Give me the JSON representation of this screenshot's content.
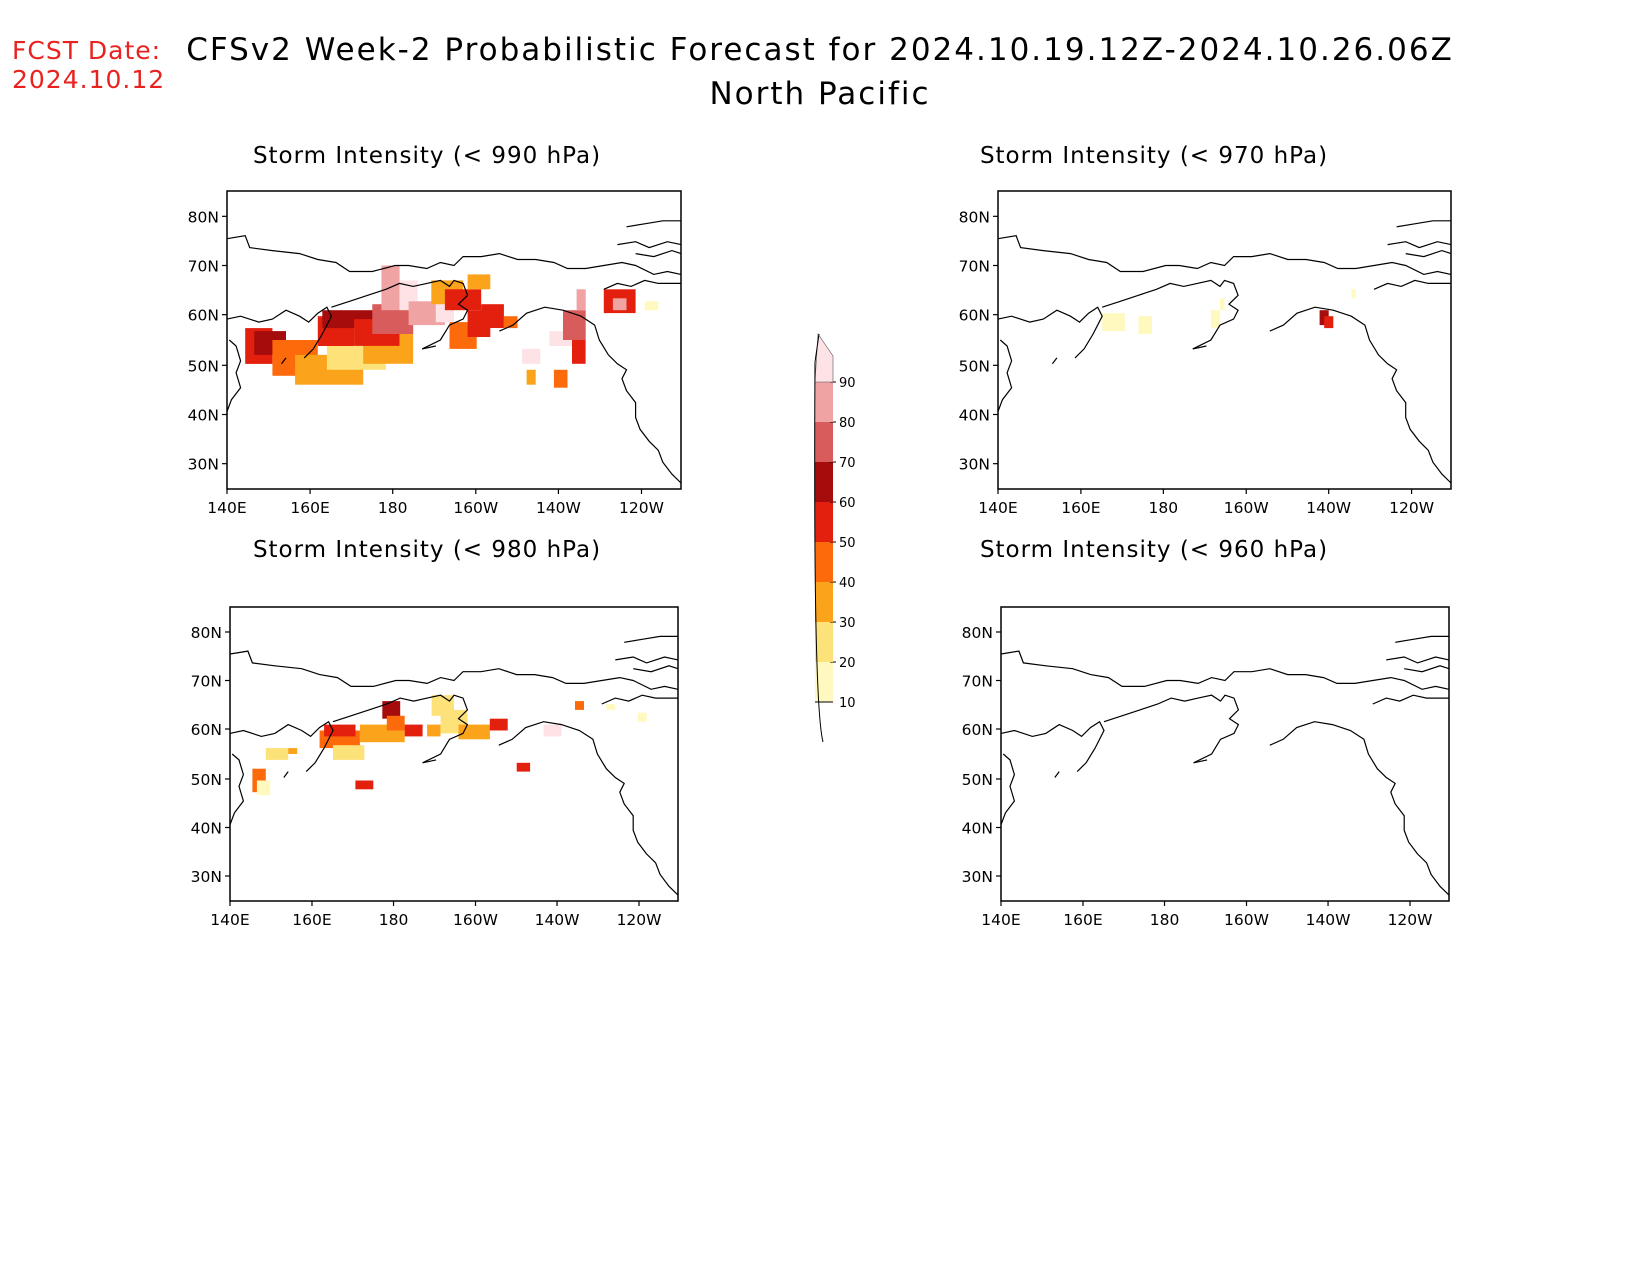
{
  "header": {
    "fcst_label": "FCST Date:",
    "fcst_date": "2024.10.12",
    "title": "CFSv2 Week-2 Probabilistic Forecast for 2024.10.19.12Z-2024.10.26.06Z",
    "region": "North Pacific"
  },
  "axes": {
    "lon_ticks": [
      "140E",
      "160E",
      "180",
      "160W",
      "140W",
      "120W"
    ],
    "lat_ticks": [
      "80N",
      "70N",
      "60N",
      "50N",
      "40N",
      "30N"
    ]
  },
  "panels": [
    {
      "id": "p990",
      "title": "Storm Intensity (< 990 hPa)",
      "level": "heavy"
    },
    {
      "id": "p970",
      "title": "Storm Intensity (< 970 hPa)",
      "level": "light"
    },
    {
      "id": "p980",
      "title": "Storm Intensity (< 980 hPa)",
      "level": "medium"
    },
    {
      "id": "p960",
      "title": "Storm Intensity (< 960 hPa)",
      "level": "none"
    }
  ],
  "colorbar": {
    "labels": [
      "10",
      "20",
      "30",
      "40",
      "50",
      "60",
      "70",
      "80",
      "90"
    ],
    "colors": [
      "#fff9bf",
      "#fde27a",
      "#fba31a",
      "#fd6a0b",
      "#e31f0d",
      "#a50d0d",
      "#d85c5c",
      "#f0a3a3",
      "#fde3e6"
    ]
  }
}
